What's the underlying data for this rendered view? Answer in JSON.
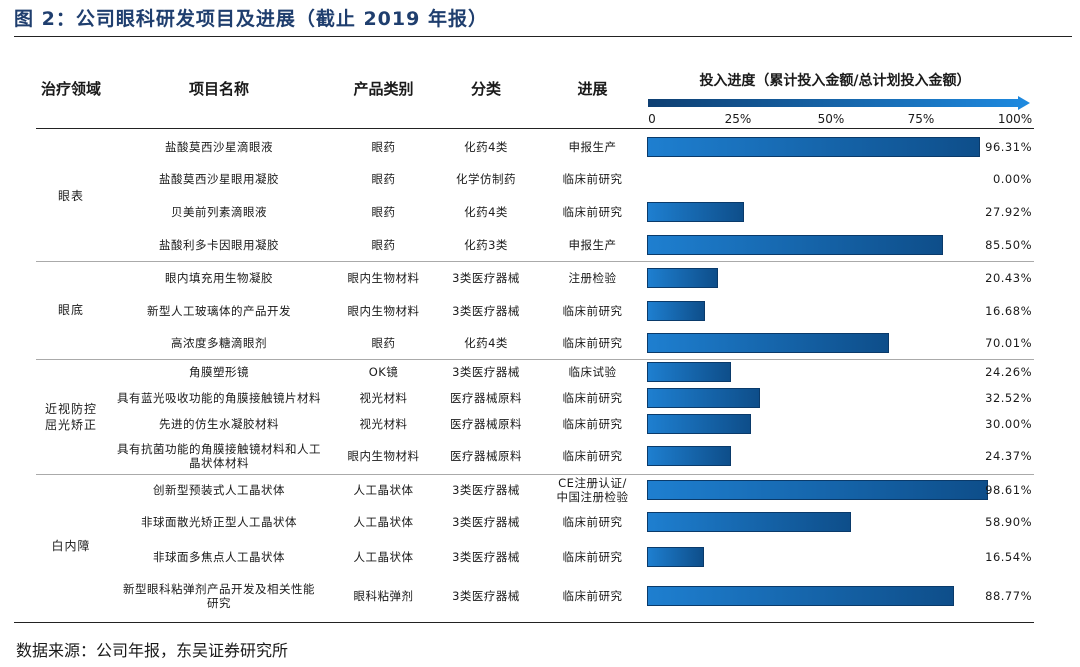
{
  "figure_title": "图 2：公司眼科研发项目及进展（截止 2019 年报）",
  "headers": {
    "area": "治疗领域",
    "project": "项目名称",
    "category": "产品类别",
    "class": "分类",
    "progress": "进展",
    "investment": "投入进度（累计投入金额/总计划投入金额）"
  },
  "axis_ticks": [
    "0",
    "25%",
    "50%",
    "75%",
    "100%"
  ],
  "groups": [
    {
      "name": "眼表"
    },
    {
      "name": "眼底"
    },
    {
      "name": "近视防控\n屈光矫正"
    },
    {
      "name": "白内障"
    }
  ],
  "rows": [
    {
      "name": "盐酸莫西沙星滴眼液",
      "type": "眼药",
      "class": "化药4类",
      "progress": "申报生产",
      "value": 96.31,
      "label": "96.31%"
    },
    {
      "name": "盐酸莫西沙星眼用凝胶",
      "type": "眼药",
      "class": "化学仿制药",
      "progress": "临床前研究",
      "value": 0.0,
      "label": "0.00%"
    },
    {
      "name": "贝美前列素滴眼液",
      "type": "眼药",
      "class": "化药4类",
      "progress": "临床前研究",
      "value": 27.92,
      "label": "27.92%"
    },
    {
      "name": "盐酸利多卡因眼用凝胶",
      "type": "眼药",
      "class": "化药3类",
      "progress": "申报生产",
      "value": 85.5,
      "label": "85.50%"
    },
    {
      "name": "眼内填充用生物凝胶",
      "type": "眼内生物材料",
      "class": "3类医疗器械",
      "progress": "注册检验",
      "value": 20.43,
      "label": "20.43%"
    },
    {
      "name": "新型人工玻璃体的产品开发",
      "type": "眼内生物材料",
      "class": "3类医疗器械",
      "progress": "临床前研究",
      "value": 16.68,
      "label": "16.68%"
    },
    {
      "name": "高浓度多糖滴眼剂",
      "type": "眼药",
      "class": "化药4类",
      "progress": "临床前研究",
      "value": 70.01,
      "label": "70.01%"
    },
    {
      "name": "角膜塑形镜",
      "type": "OK镜",
      "class": "3类医疗器械",
      "progress": "临床试验",
      "value": 24.26,
      "label": "24.26%"
    },
    {
      "name": "具有蓝光吸收功能的角膜接触镜片材料",
      "type": "视光材料",
      "class": "医疗器械原料",
      "progress": "临床前研究",
      "value": 32.52,
      "label": "32.52%"
    },
    {
      "name": "先进的仿生水凝胶材料",
      "type": "视光材料",
      "class": "医疗器械原料",
      "progress": "临床前研究",
      "value": 30.0,
      "label": "30.00%"
    },
    {
      "name": "具有抗菌功能的角膜接触镜材料和人工\n晶状体材料",
      "type": "眼内生物材料",
      "class": "医疗器械原料",
      "progress": "临床前研究",
      "value": 24.37,
      "label": "24.37%"
    },
    {
      "name": "创新型预装式人工晶状体",
      "type": "人工晶状体",
      "class": "3类医疗器械",
      "progress": "CE注册认证/\n中国注册检验",
      "value": 98.61,
      "label": "98.61%"
    },
    {
      "name": "非球面散光矫正型人工晶状体",
      "type": "人工晶状体",
      "class": "3类医疗器械",
      "progress": "临床前研究",
      "value": 58.9,
      "label": "58.90%"
    },
    {
      "name": "非球面多焦点人工晶状体",
      "type": "人工晶状体",
      "class": "3类医疗器械",
      "progress": "临床前研究",
      "value": 16.54,
      "label": "16.54%"
    },
    {
      "name": "新型眼科粘弹剂产品开发及相关性能\n研究",
      "type": "眼科粘弹剂",
      "class": "3类医疗器械",
      "progress": "临床前研究",
      "value": 88.77,
      "label": "88.77%"
    }
  ],
  "source": "数据来源：公司年报，东吴证券研究所",
  "colors": {
    "bar_start": "#1e7fd0",
    "bar_end": "#0e4e8a",
    "title": "#1f3e6e"
  }
}
